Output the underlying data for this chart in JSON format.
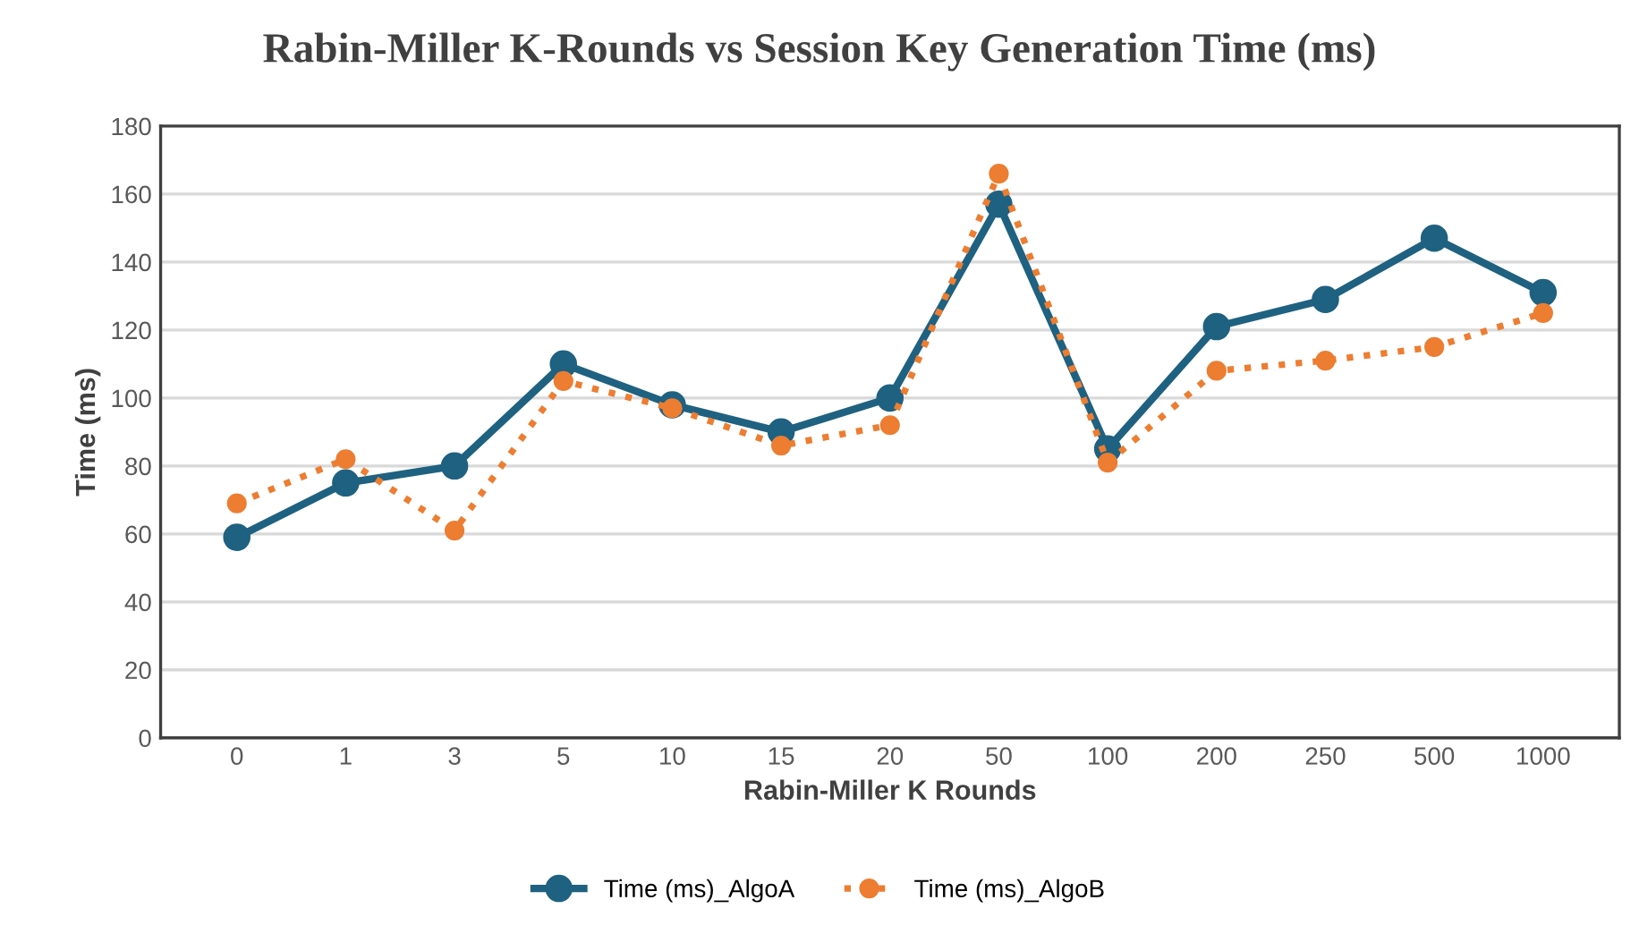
{
  "chart_data": {
    "type": "line",
    "title": "Rabin-Miller K-Rounds vs Session Key Generation Time (ms)",
    "xlabel": "Rabin-Miller K Rounds",
    "ylabel": "Time (ms)",
    "categories": [
      "0",
      "1",
      "3",
      "5",
      "10",
      "15",
      "20",
      "50",
      "100",
      "200",
      "250",
      "500",
      "1000"
    ],
    "series": [
      {
        "name": "Time (ms)_AlgoA",
        "color": "#1f6180",
        "line_style": "solid",
        "values": [
          59,
          75,
          80,
          110,
          98,
          90,
          100,
          157,
          85,
          121,
          129,
          147,
          131
        ]
      },
      {
        "name": "Time (ms)_AlgoB",
        "color": "#ed7d31",
        "line_style": "dotted",
        "values": [
          69,
          82,
          61,
          105,
          97,
          86,
          92,
          166,
          81,
          108,
          111,
          115,
          125
        ]
      }
    ],
    "ylim": [
      0,
      180
    ],
    "yticks": [
      0,
      20,
      40,
      60,
      80,
      100,
      120,
      140,
      160,
      180
    ],
    "grid": "y",
    "legend": "bottom",
    "marker": "circle"
  }
}
